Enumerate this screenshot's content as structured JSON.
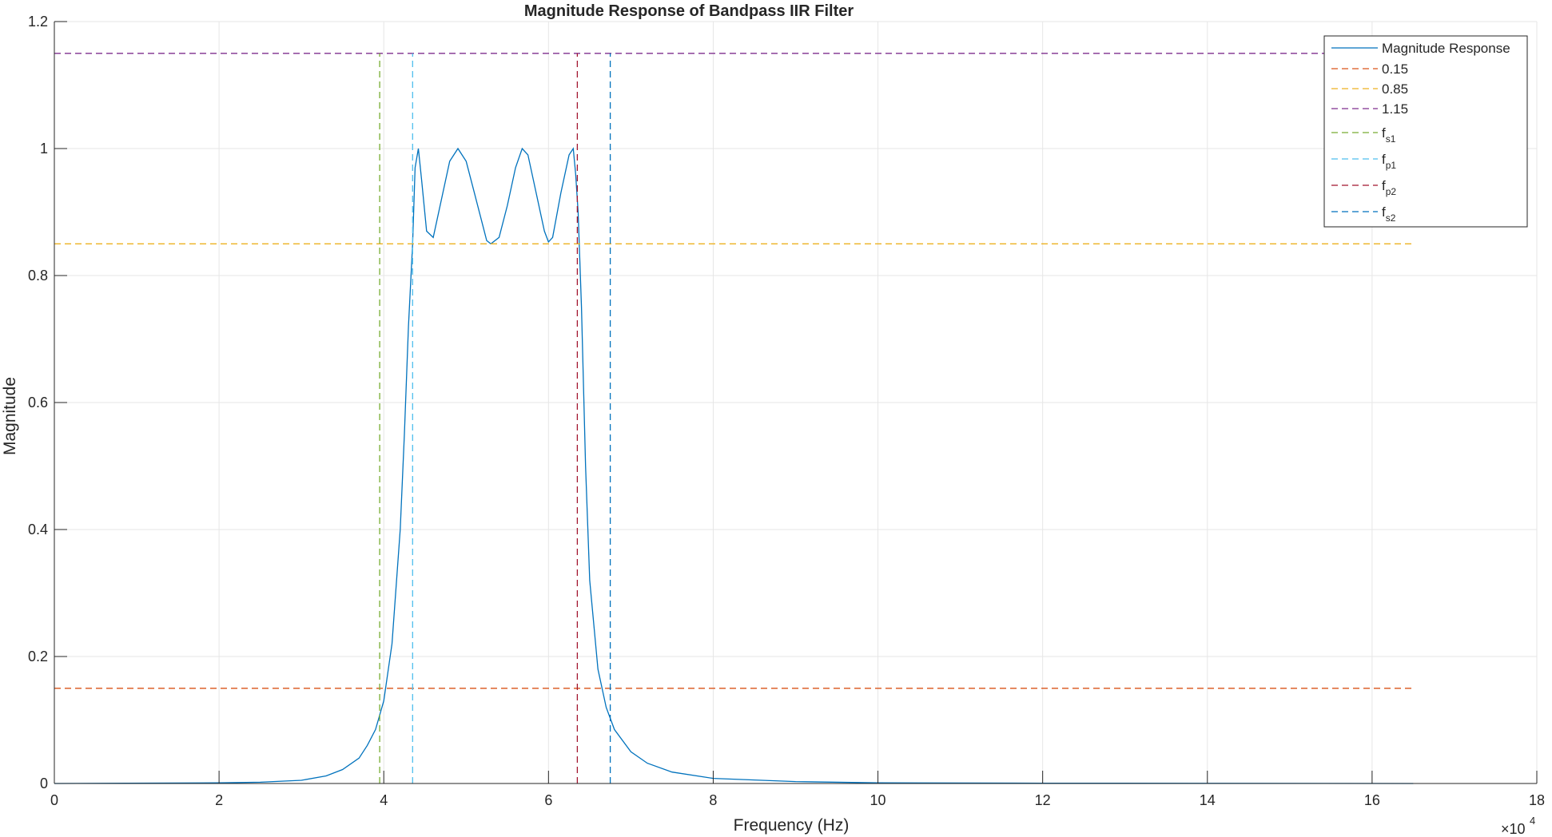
{
  "chart_data": {
    "type": "line",
    "title": "Magnitude Response of Bandpass IIR Filter",
    "xlabel": "Frequency (Hz)",
    "ylabel": "Magnitude",
    "x_exponent_label": "×10",
    "x_exponent_power": "4",
    "xlim": [
      0,
      180000
    ],
    "ylim": [
      0,
      1.2
    ],
    "x_ticks": [
      0,
      20000,
      40000,
      60000,
      80000,
      100000,
      120000,
      140000,
      160000,
      180000
    ],
    "x_tick_labels": [
      "0",
      "2",
      "4",
      "6",
      "8",
      "10",
      "12",
      "14",
      "16",
      "18"
    ],
    "y_ticks": [
      0,
      0.2,
      0.4,
      0.6,
      0.8,
      1,
      1.2
    ],
    "y_tick_labels": [
      "0",
      "0.2",
      "0.4",
      "0.6",
      "0.8",
      "1",
      "1.2"
    ],
    "grid": true,
    "legend_position": "top-right",
    "series": [
      {
        "name": "Magnitude Response",
        "style": "solid",
        "color": "#0072BD",
        "x": [
          0,
          20000,
          25000,
          30000,
          33000,
          35000,
          37000,
          38000,
          39000,
          40000,
          41000,
          42000,
          42500,
          43000,
          43500,
          43800,
          44200,
          44600,
          45200,
          46000,
          47000,
          48000,
          49000,
          50000,
          51000,
          52000,
          52500,
          53000,
          54000,
          55000,
          56000,
          56800,
          57500,
          58500,
          59500,
          60000,
          60500,
          61500,
          62500,
          63000,
          63300,
          63600,
          64000,
          64500,
          65000,
          66000,
          67000,
          68000,
          70000,
          72000,
          75000,
          80000,
          90000,
          100000,
          120000,
          140000,
          165000
        ],
        "y": [
          0,
          0.001,
          0.002,
          0.005,
          0.012,
          0.022,
          0.04,
          0.06,
          0.085,
          0.13,
          0.22,
          0.4,
          0.55,
          0.72,
          0.85,
          0.97,
          1.0,
          0.95,
          0.87,
          0.86,
          0.92,
          0.98,
          1.0,
          0.98,
          0.93,
          0.88,
          0.855,
          0.85,
          0.86,
          0.91,
          0.97,
          1.0,
          0.99,
          0.93,
          0.87,
          0.853,
          0.86,
          0.93,
          0.99,
          1.0,
          0.96,
          0.9,
          0.75,
          0.5,
          0.32,
          0.18,
          0.12,
          0.085,
          0.05,
          0.032,
          0.018,
          0.008,
          0.003,
          0.001,
          0.0005,
          0.0002,
          0
        ]
      },
      {
        "name": "0.15",
        "style": "dashed",
        "color": "#D95319",
        "x": [
          0,
          165000
        ],
        "y": [
          0.15,
          0.15
        ]
      },
      {
        "name": "0.85",
        "style": "dashed",
        "color": "#EDB120",
        "x": [
          0,
          165000
        ],
        "y": [
          0.85,
          0.85
        ]
      },
      {
        "name": "1.15",
        "style": "dashed",
        "color": "#7E2F8E",
        "x": [
          0,
          165000
        ],
        "y": [
          1.15,
          1.15
        ]
      },
      {
        "name": "f",
        "name_sub": "s1",
        "style": "dashed",
        "color": "#77AC30",
        "x": [
          39500,
          39500
        ],
        "y": [
          0,
          1.15
        ]
      },
      {
        "name": "f",
        "name_sub": "p1",
        "style": "dashed",
        "color": "#4DBEEE",
        "x": [
          43500,
          43500
        ],
        "y": [
          0,
          1.15
        ]
      },
      {
        "name": "f",
        "name_sub": "p2",
        "style": "dashed",
        "color": "#A2142F",
        "x": [
          63500,
          63500
        ],
        "y": [
          0,
          1.15
        ]
      },
      {
        "name": "f",
        "name_sub": "s2",
        "style": "dashed",
        "color": "#0072BD",
        "x": [
          67500,
          67500
        ],
        "y": [
          0,
          1.15
        ]
      }
    ]
  }
}
